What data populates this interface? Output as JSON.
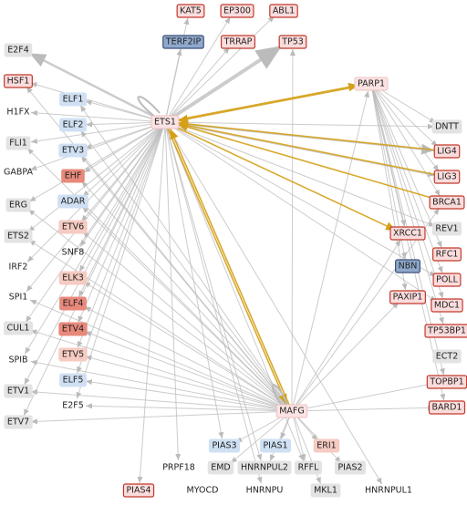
{
  "nodes": [
    "ETS1",
    "MAFG",
    "KAT5",
    "EP300",
    "ABL1",
    "TERF2IP",
    "TRRAP",
    "TP53",
    "E2F4",
    "HSF1",
    "ELF1",
    "H1FX",
    "ELF2",
    "PARP1",
    "DNTT",
    "FLI1",
    "ETV3",
    "LIG4",
    "GABPA",
    "EHF",
    "LIG3",
    "ERG",
    "ADAR",
    "BRCA1",
    "ETV6",
    "REV1",
    "ETS2",
    "XRCC1",
    "SNF8",
    "RFC1",
    "IRF2",
    "NBN",
    "ELK3",
    "POLL",
    "SPI1",
    "PAXIP1",
    "ELF4",
    "MDC1",
    "CUL1",
    "ETV4",
    "TP53BP1",
    "SPIB",
    "ETV5",
    "ECT2",
    "ETV1",
    "ELF5",
    "TOPBP1",
    "E2F5",
    "BARD1",
    "ETV7",
    "PIAS3",
    "PIAS1",
    "ERI1",
    "PRPF18",
    "EMD",
    "HNRNPUL2",
    "RFFL",
    "PIAS2",
    "PIAS4",
    "MYOCD",
    "HNRNPU",
    "MKL1",
    "HNRNPUL1"
  ]
}
